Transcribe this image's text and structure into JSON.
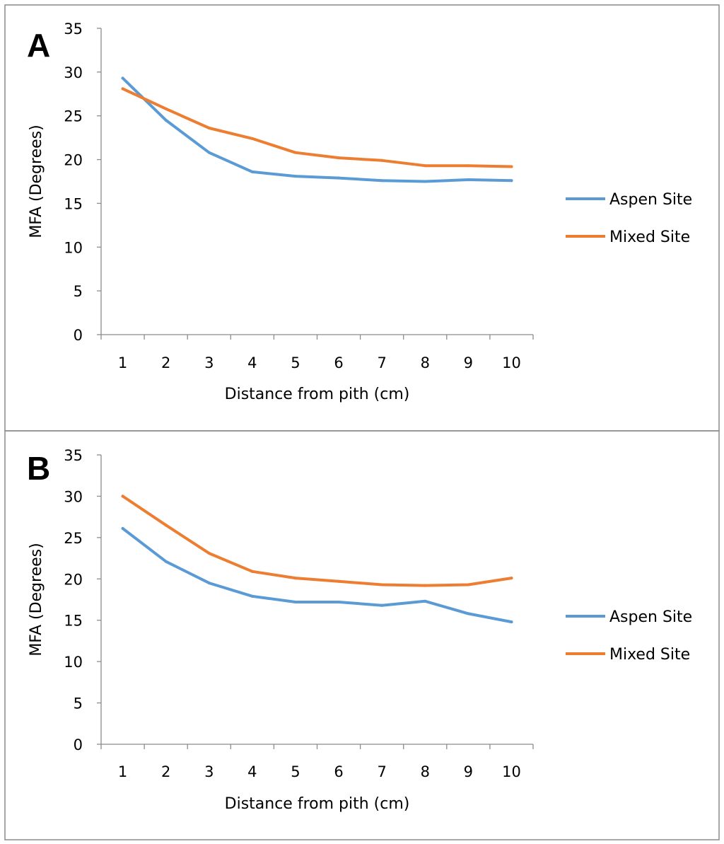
{
  "chart_data": [
    {
      "type": "line",
      "panel_label": "A",
      "title": "",
      "xlabel": "Distance from pith (cm)",
      "ylabel": "MFA (Degrees)",
      "categories": [
        "1",
        "2",
        "3",
        "4",
        "5",
        "6",
        "7",
        "8",
        "9",
        "10"
      ],
      "ylim": [
        0,
        35
      ],
      "yticks": [
        "0",
        "5",
        "10",
        "15",
        "20",
        "25",
        "30",
        "35"
      ],
      "grid": false,
      "legend_position": "right",
      "series": [
        {
          "name": "Aspen Site",
          "color": "#5B9BD5",
          "values": [
            29.3,
            24.5,
            20.8,
            18.6,
            18.1,
            17.9,
            17.6,
            17.5,
            17.7,
            17.6
          ]
        },
        {
          "name": "Mixed Site",
          "color": "#ED7D31",
          "values": [
            28.1,
            25.8,
            23.6,
            22.4,
            20.8,
            20.2,
            19.9,
            19.3,
            19.3,
            19.2
          ]
        }
      ]
    },
    {
      "type": "line",
      "panel_label": "B",
      "title": "",
      "xlabel": "Distance from pith (cm)",
      "ylabel": "MFA (Degrees)",
      "categories": [
        "1",
        "2",
        "3",
        "4",
        "5",
        "6",
        "7",
        "8",
        "9",
        "10"
      ],
      "ylim": [
        0,
        35
      ],
      "yticks": [
        "0",
        "5",
        "10",
        "15",
        "20",
        "25",
        "30",
        "35"
      ],
      "grid": false,
      "legend_position": "right",
      "series": [
        {
          "name": "Aspen Site",
          "color": "#5B9BD5",
          "values": [
            26.1,
            22.1,
            19.5,
            17.9,
            17.2,
            17.2,
            16.8,
            17.3,
            15.8,
            14.8
          ]
        },
        {
          "name": "Mixed Site",
          "color": "#ED7D31",
          "values": [
            30.0,
            26.5,
            23.1,
            20.9,
            20.1,
            19.7,
            19.3,
            19.2,
            19.3,
            20.1
          ]
        }
      ]
    }
  ]
}
